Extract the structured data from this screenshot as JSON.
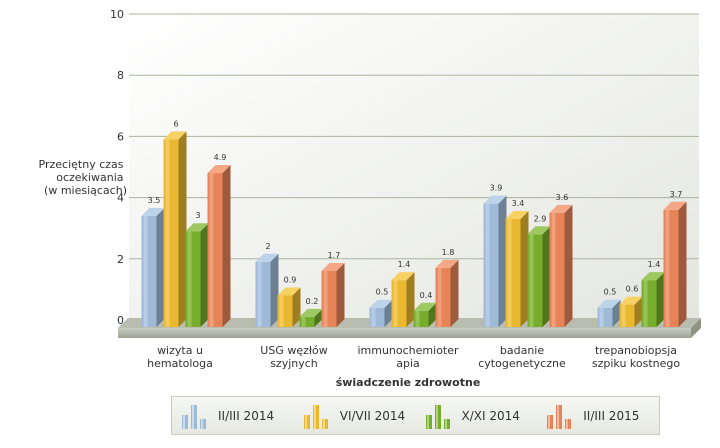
{
  "chart_data": {
    "type": "bar",
    "ylabel": [
      "Przeciętny czas",
      "oczekiwania",
      "(w miesiącach)"
    ],
    "xlabel": "świadczenie zdrowotne",
    "ylim": [
      0,
      10
    ],
    "yticks": [
      "0",
      "2",
      "4",
      "6",
      "8",
      "10"
    ],
    "grid": true,
    "legend_position": "bottom",
    "categories": [
      [
        "wizyta u",
        "hematologa"
      ],
      [
        "USG węzłów",
        "szyjnych"
      ],
      [
        "immunochemioter",
        "apia"
      ],
      [
        "badanie",
        "cytogenetyczne"
      ],
      [
        "trepanobiopsja",
        "szpiku kostnego"
      ]
    ],
    "series": [
      {
        "name": "II/III 2014",
        "color": "#a6c4e2",
        "values": [
          3.5,
          2,
          0.5,
          3.9,
          0.5
        ],
        "labels": [
          "3.5",
          "2",
          "0.5",
          "3.9",
          "0.5"
        ]
      },
      {
        "name": "VI/VII 2014",
        "color": "#f5c232",
        "values": [
          6,
          0.9,
          1.4,
          3.4,
          0.6
        ],
        "labels": [
          "6",
          "0.9",
          "1.4",
          "3.4",
          "0.6"
        ]
      },
      {
        "name": "X/XI 2014",
        "color": "#7db62e",
        "values": [
          3,
          0.2,
          0.4,
          2.9,
          1.4
        ],
        "labels": [
          "3",
          "0.2",
          "0.4",
          "2.9",
          "1.4"
        ]
      },
      {
        "name": "II/III 2015",
        "color": "#f28a5c",
        "values": [
          4.9,
          1.7,
          1.8,
          3.6,
          3.7
        ],
        "labels": [
          "4.9",
          "1.7",
          "1.8",
          "3.6",
          "3.7"
        ]
      }
    ]
  }
}
